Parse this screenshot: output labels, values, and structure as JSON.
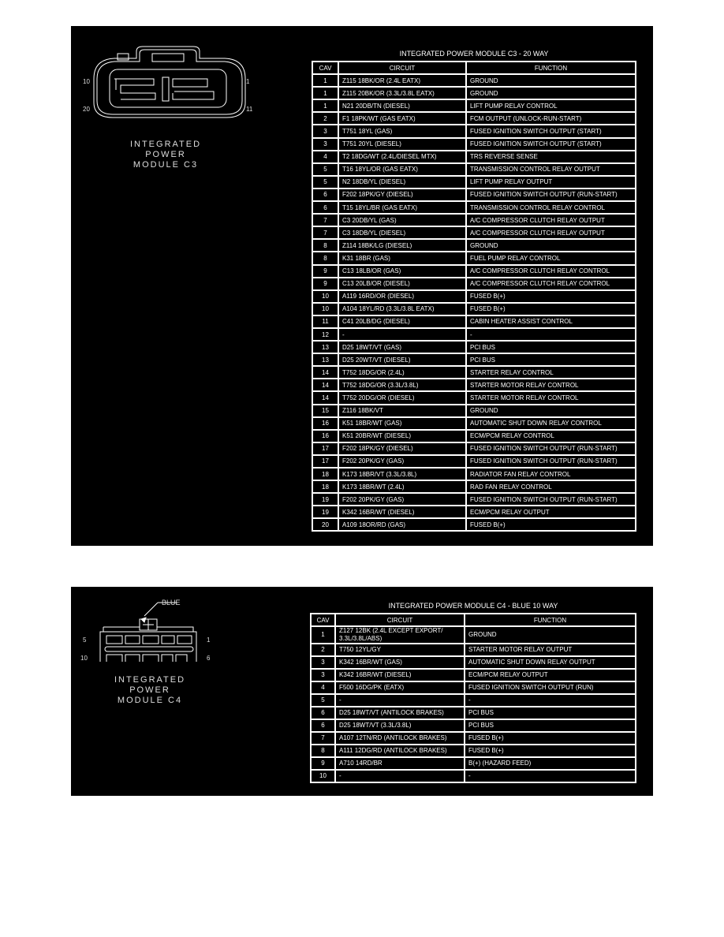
{
  "c3": {
    "connector_label": [
      "INTEGRATED",
      "POWER",
      "MODULE C3"
    ],
    "pin_labels": {
      "top_left": "10",
      "bottom_left": "20",
      "top_right": "1",
      "bottom_right": "11"
    },
    "table": {
      "title": "INTEGRATED POWER MODULE C3 - 20 WAY",
      "headers": [
        "CAV",
        "CIRCUIT",
        "FUNCTION"
      ],
      "rows": [
        [
          "1",
          "Z115 18BK/OR (2.4L EATX)",
          "GROUND"
        ],
        [
          "1",
          "Z115 20BK/OR (3.3L/3.8L EATX)",
          "GROUND"
        ],
        [
          "1",
          "N21 20DB/TN (DIESEL)",
          "LIFT PUMP RELAY CONTROL"
        ],
        [
          "2",
          "F1 18PK/WT (GAS EATX)",
          "FCM OUTPUT (UNLOCK-RUN-START)"
        ],
        [
          "3",
          "T751 18YL (GAS)",
          "FUSED IGNITION SWITCH OUTPUT (START)"
        ],
        [
          "3",
          "T751 20YL (DIESEL)",
          "FUSED IGNITION SWITCH OUTPUT (START)"
        ],
        [
          "4",
          "T2 18DG/WT (2.4L/DIESEL MTX)",
          "TRS REVERSE SENSE"
        ],
        [
          "5",
          "T16 18YL/OR (GAS EATX)",
          "TRANSMISSION CONTROL RELAY OUTPUT"
        ],
        [
          "5",
          "N2 18DB/YL (DIESEL)",
          "LIFT PUMP RELAY OUTPUT"
        ],
        [
          "6",
          "F202 18PK/GY (DIESEL)",
          "FUSED IGNITION SWITCH OUTPUT (RUN-START)"
        ],
        [
          "6",
          "T15 18YL/BR (GAS EATX)",
          "TRANSMISSION CONTROL RELAY CONTROL"
        ],
        [
          "7",
          "C3 20DB/YL (GAS)",
          "A/C COMPRESSOR CLUTCH RELAY OUTPUT"
        ],
        [
          "7",
          "C3 18DB/YL (DIESEL)",
          "A/C COMPRESSOR CLUTCH RELAY OUTPUT"
        ],
        [
          "8",
          "Z114 18BK/LG (DIESEL)",
          "GROUND"
        ],
        [
          "8",
          "K31 18BR (GAS)",
          "FUEL PUMP RELAY CONTROL"
        ],
        [
          "9",
          "C13 18LB/OR (GAS)",
          "A/C COMPRESSOR CLUTCH RELAY CONTROL"
        ],
        [
          "9",
          "C13 20LB/OR (DIESEL)",
          "A/C COMPRESSOR CLUTCH RELAY CONTROL"
        ],
        [
          "10",
          "A119 16RD/OR (DIESEL)",
          "FUSED B(+)"
        ],
        [
          "10",
          "A104 18YL/RD (3.3L/3.8L EATX)",
          "FUSED B(+)"
        ],
        [
          "11",
          "C41 20LB/DG (DIESEL)",
          "CABIN HEATER ASSIST CONTROL"
        ],
        [
          "12",
          "-",
          "-"
        ],
        [
          "13",
          "D25 18WT/VT (GAS)",
          "PCI BUS"
        ],
        [
          "13",
          "D25 20WT/VT (DIESEL)",
          "PCI BUS"
        ],
        [
          "14",
          "T752 18DG/OR (2.4L)",
          "STARTER RELAY CONTROL"
        ],
        [
          "14",
          "T752 18DG/OR (3.3L/3.8L)",
          "STARTER MOTOR RELAY CONTROL"
        ],
        [
          "14",
          "T752 20DG/OR (DIESEL)",
          "STARTER MOTOR RELAY CONTROL"
        ],
        [
          "15",
          "Z116 18BK/VT",
          "GROUND"
        ],
        [
          "16",
          "K51 18BR/WT (GAS)",
          "AUTOMATIC SHUT DOWN RELAY CONTROL"
        ],
        [
          "16",
          "K51 20BR/WT (DIESEL)",
          "ECM/PCM RELAY CONTROL"
        ],
        [
          "17",
          "F202 18PK/GY (DIESEL)",
          "FUSED IGNITION SWITCH OUTPUT (RUN-START)"
        ],
        [
          "17",
          "F202 20PK/GY (GAS)",
          "FUSED IGNITION SWITCH OUTPUT (RUN-START)"
        ],
        [
          "18",
          "K173 18BR/VT (3.3L/3.8L)",
          "RADIATOR FAN RELAY CONTROL"
        ],
        [
          "18",
          "K173 18BR/WT (2.4L)",
          "RAD FAN RELAY CONTROL"
        ],
        [
          "19",
          "F202 20PK/GY (GAS)",
          "FUSED IGNITION SWITCH OUTPUT (RUN-START)"
        ],
        [
          "19",
          "K342 16BR/WT (DIESEL)",
          "ECM/PCM RELAY OUTPUT"
        ],
        [
          "20",
          "A109 18OR/RD (GAS)",
          "FUSED B(+)"
        ]
      ]
    }
  },
  "c4": {
    "connector_label": [
      "INTEGRATED",
      "POWER",
      "MODULE C4"
    ],
    "callout": "BLUE",
    "pin_labels": {
      "top_left": "5",
      "bottom_left": "10",
      "top_right": "1",
      "bottom_right": "6"
    },
    "table": {
      "title": "INTEGRATED POWER MODULE C4 - BLUE 10 WAY",
      "headers": [
        "CAV",
        "CIRCUIT",
        "FUNCTION"
      ],
      "rows": [
        [
          "1",
          "Z127 12BK (2.4L EXCEPT EXPORT/ 3.3L/3.8L/ABS)",
          "GROUND"
        ],
        [
          "2",
          "T750 12YL/GY",
          "STARTER MOTOR RELAY OUTPUT"
        ],
        [
          "3",
          "K342 16BR/WT (GAS)",
          "AUTOMATIC SHUT DOWN RELAY OUTPUT"
        ],
        [
          "3",
          "K342 16BR/WT (DIESEL)",
          "ECM/PCM RELAY OUTPUT"
        ],
        [
          "4",
          "F500 16DG/PK (EATX)",
          "FUSED IGNITION SWITCH OUTPUT (RUN)"
        ],
        [
          "5",
          "-",
          "-"
        ],
        [
          "6",
          "D25 18WT/VT (ANTILOCK BRAKES)",
          "PCI BUS"
        ],
        [
          "6",
          "D25 18WT/VT (3.3L/3.8L)",
          "PCI BUS"
        ],
        [
          "7",
          "A107 12TN/RD (ANTILOCK BRAKES)",
          "FUSED B(+)"
        ],
        [
          "8",
          "A111 12DG/RD (ANTILOCK BRAKES)",
          "FUSED B(+)"
        ],
        [
          "9",
          "A710 14RD/BR",
          "B(+) (HAZARD FEED)"
        ],
        [
          "10",
          "-",
          "-"
        ]
      ]
    }
  }
}
